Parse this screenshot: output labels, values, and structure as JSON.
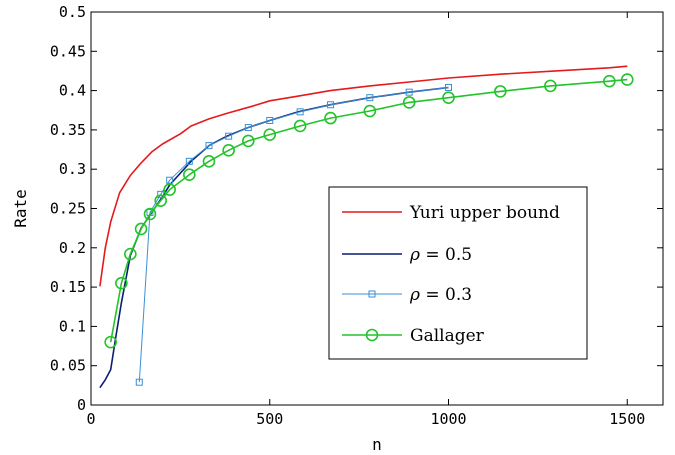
{
  "chart_data": {
    "type": "line",
    "title": "",
    "xlabel": "n",
    "ylabel": "Rate",
    "xlim": [
      0,
      1600
    ],
    "ylim": [
      0,
      0.5
    ],
    "x_ticks": [
      0,
      500,
      1000,
      1500
    ],
    "x_tick_labels": [
      "0",
      "500",
      "1000",
      "1500"
    ],
    "y_ticks": [
      0,
      0.05,
      0.1,
      0.15,
      0.2,
      0.25,
      0.3,
      0.35,
      0.4,
      0.45,
      0.5
    ],
    "y_tick_labels": [
      "0",
      "0.05",
      "0.1",
      "0.15",
      "0.2",
      "0.25",
      "0.3",
      "0.35",
      "0.4",
      "0.45",
      "0.5"
    ],
    "grid": false,
    "legend_position": "center-right",
    "series": [
      {
        "name": "Yuri upper bound",
        "color": "#e41a1c",
        "marker": "none",
        "x": [
          25,
          40,
          55,
          80,
          110,
          140,
          170,
          200,
          250,
          280,
          330,
          380,
          450,
          500,
          580,
          670,
          780,
          890,
          1000,
          1150,
          1300,
          1450,
          1500
        ],
        "y": [
          0.151,
          0.2,
          0.233,
          0.27,
          0.292,
          0.308,
          0.322,
          0.332,
          0.345,
          0.355,
          0.364,
          0.371,
          0.38,
          0.387,
          0.393,
          0.4,
          0.406,
          0.411,
          0.416,
          0.421,
          0.425,
          0.429,
          0.431
        ]
      },
      {
        "name": "ρ = 0.5",
        "legend_prefix": "ρ",
        "legend_suffix": " = 0.5",
        "color": "#0a1f6e",
        "marker": "none",
        "x": [
          25,
          40,
          55,
          70,
          85,
          110,
          140,
          170,
          200,
          220,
          250,
          280,
          330,
          380,
          440,
          500,
          580,
          670,
          780,
          890,
          1000
        ],
        "y": [
          0.022,
          0.032,
          0.045,
          0.088,
          0.13,
          0.19,
          0.225,
          0.245,
          0.265,
          0.28,
          0.295,
          0.31,
          0.33,
          0.342,
          0.353,
          0.362,
          0.373,
          0.382,
          0.391,
          0.398,
          0.404
        ]
      },
      {
        "name": "ρ = 0.3",
        "legend_prefix": "ρ",
        "legend_suffix": " = 0.3",
        "color": "#3a8fd6",
        "marker": "square",
        "x": [
          135,
          165,
          195,
          220,
          275,
          330,
          385,
          440,
          500,
          585,
          670,
          780,
          890,
          1000
        ],
        "y": [
          0.029,
          0.245,
          0.268,
          0.286,
          0.31,
          0.33,
          0.342,
          0.353,
          0.362,
          0.373,
          0.382,
          0.391,
          0.398,
          0.404
        ]
      },
      {
        "name": "Gallager",
        "color": "#22c42a",
        "marker": "circle",
        "x": [
          55,
          85,
          110,
          140,
          165,
          195,
          220,
          275,
          330,
          385,
          440,
          500,
          585,
          670,
          780,
          890,
          1000,
          1145,
          1285,
          1450,
          1500
        ],
        "y": [
          0.08,
          0.155,
          0.192,
          0.224,
          0.243,
          0.26,
          0.274,
          0.293,
          0.31,
          0.324,
          0.336,
          0.344,
          0.355,
          0.365,
          0.374,
          0.385,
          0.391,
          0.399,
          0.406,
          0.412,
          0.414
        ]
      }
    ]
  }
}
